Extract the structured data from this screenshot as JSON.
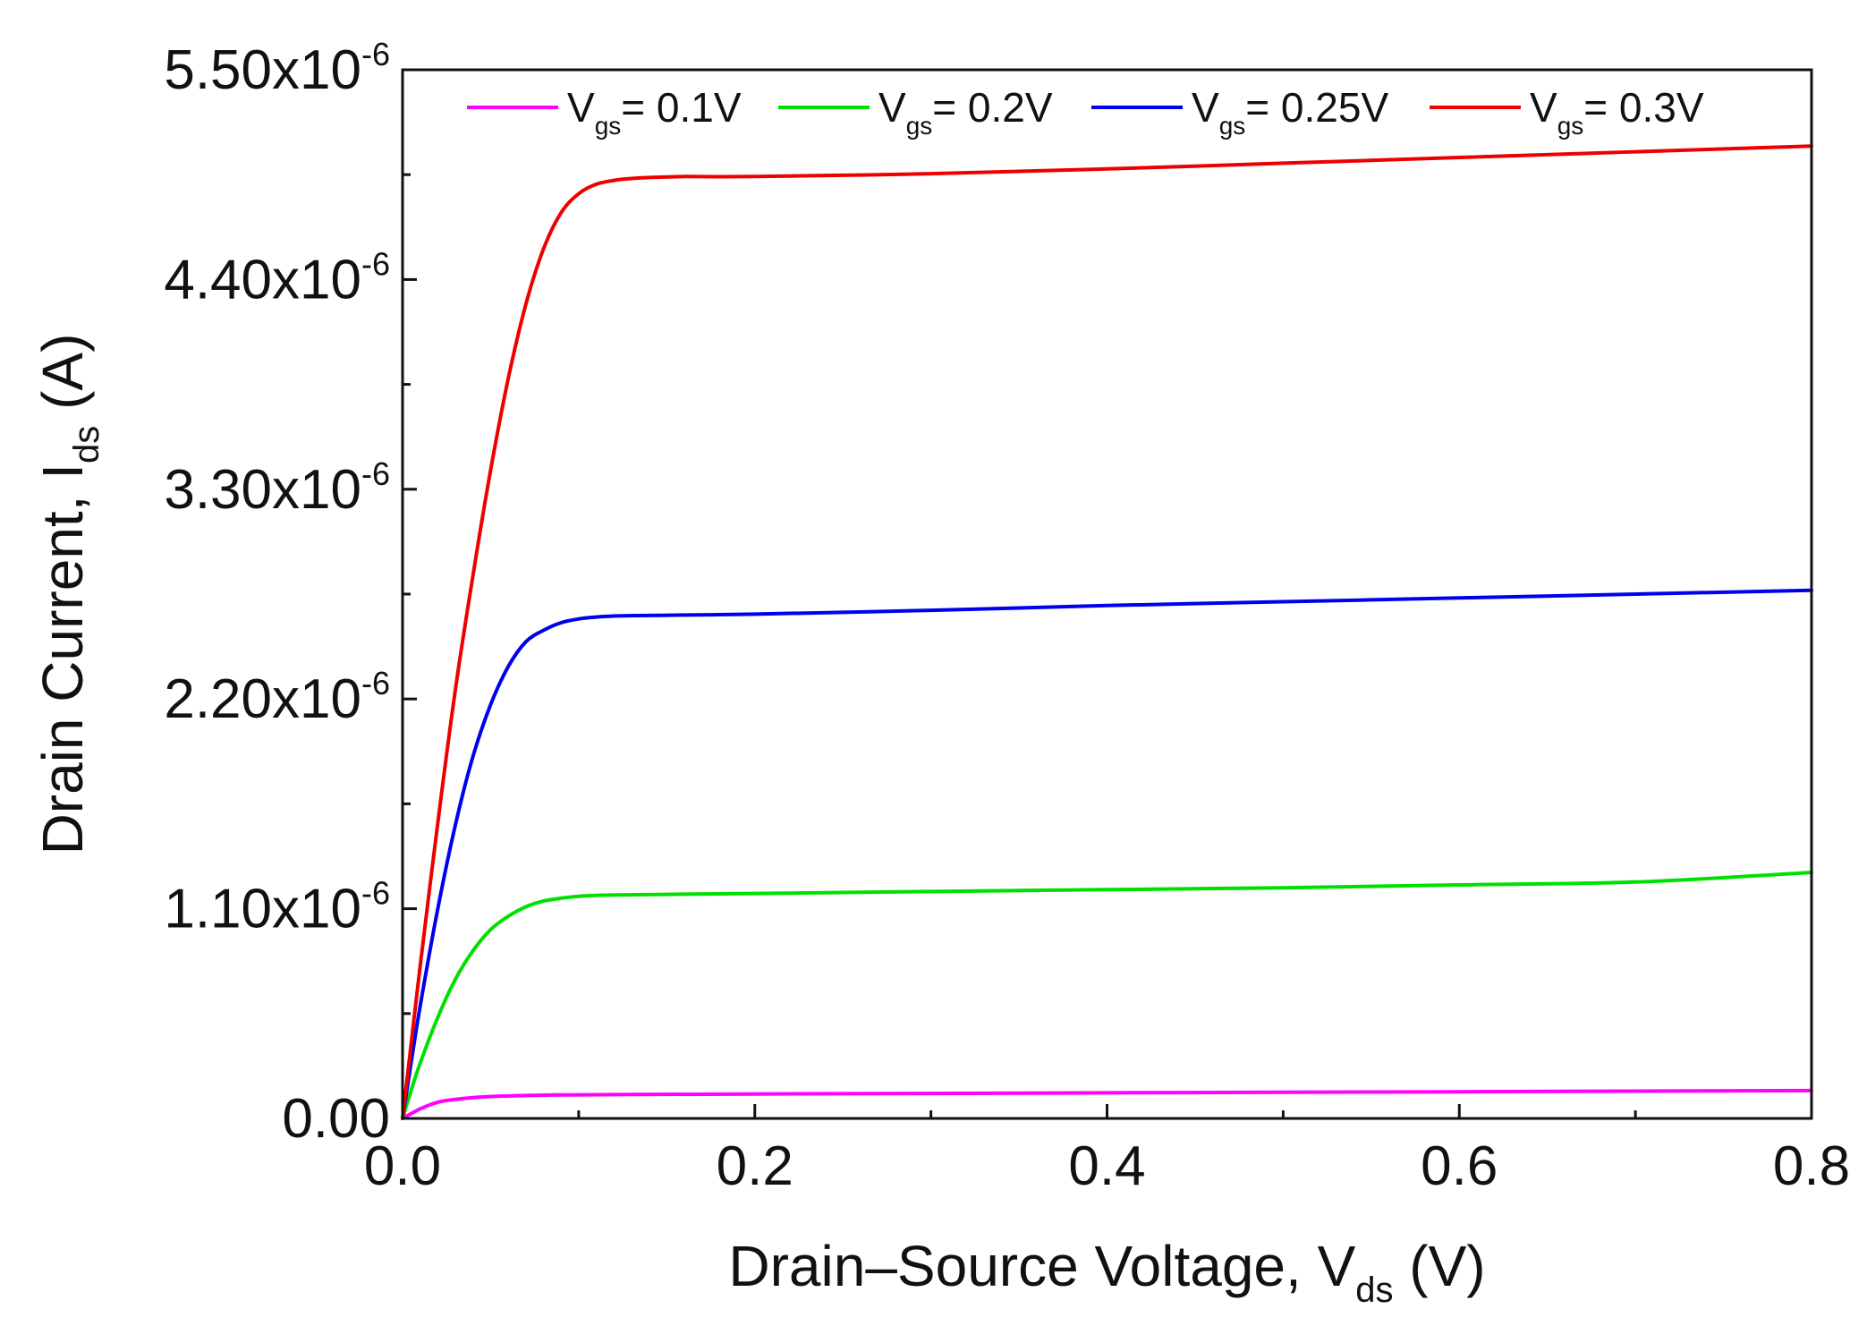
{
  "chart_data": {
    "type": "line",
    "title": "",
    "xlabel": {
      "main": "Drain–Source Voltage, V",
      "sub": "ds",
      "suffix": " (V)"
    },
    "ylabel": {
      "main": "Drain Current, I",
      "sub": "ds",
      "suffix": " (A)"
    },
    "xlim": [
      0,
      0.8
    ],
    "ylim": [
      0,
      5.5e-06
    ],
    "grid": false,
    "legend_position": "top",
    "x_ticks": [
      {
        "value": 0.0,
        "label": "0.0"
      },
      {
        "value": 0.2,
        "label": "0.2"
      },
      {
        "value": 0.4,
        "label": "0.4"
      },
      {
        "value": 0.6,
        "label": "0.6"
      },
      {
        "value": 0.8,
        "label": "0.8"
      }
    ],
    "y_ticks": [
      {
        "value": 0,
        "label": "0.00",
        "exponent": ""
      },
      {
        "value": 1.1e-06,
        "label": "1.10x10",
        "exponent": "-6"
      },
      {
        "value": 2.2e-06,
        "label": "2.20x10",
        "exponent": "-6"
      },
      {
        "value": 3.3e-06,
        "label": "3.30x10",
        "exponent": "-6"
      },
      {
        "value": 4.4e-06,
        "label": "4.40x10",
        "exponent": "-6"
      },
      {
        "value": 5.5e-06,
        "label": "5.50x10",
        "exponent": "-6"
      }
    ],
    "x_minor_ticks": [
      0.1,
      0.3,
      0.5,
      0.7
    ],
    "y_minor_ticks": [
      5.5e-07,
      1.65e-06,
      2.75e-06,
      3.85e-06,
      4.95e-06
    ],
    "series": [
      {
        "name": "Vgs = 0.1V",
        "legend_main": "V",
        "legend_sub": "gs",
        "legend_suffix": "= 0.1V",
        "color": "#ff00ff",
        "x": [
          0,
          0.01,
          0.02,
          0.03,
          0.05,
          0.08,
          0.12,
          0.2,
          0.3,
          0.4,
          0.5,
          0.6,
          0.7,
          0.8
        ],
        "y": [
          0,
          5e-08,
          8.5e-08,
          1e-07,
          1.15e-07,
          1.22e-07,
          1.25e-07,
          1.28e-07,
          1.31e-07,
          1.34e-07,
          1.37e-07,
          1.4e-07,
          1.43e-07,
          1.46e-07
        ]
      },
      {
        "name": "Vgs = 0.2V",
        "legend_main": "V",
        "legend_sub": "gs",
        "legend_suffix": "= 0.2V",
        "color": "#00e000",
        "x": [
          0,
          0.005,
          0.01,
          0.02,
          0.03,
          0.04,
          0.05,
          0.06,
          0.07,
          0.08,
          0.09,
          0.1,
          0.12,
          0.15,
          0.2,
          0.3,
          0.4,
          0.5,
          0.6,
          0.7,
          0.8
        ],
        "y": [
          0,
          1.5e-07,
          2.9e-07,
          5.3e-07,
          7.3e-07,
          8.8e-07,
          9.9e-07,
          1.06e-06,
          1.11e-06,
          1.14e-06,
          1.155e-06,
          1.165e-06,
          1.172e-06,
          1.175e-06,
          1.18e-06,
          1.19e-06,
          1.2e-06,
          1.21e-06,
          1.225e-06,
          1.24e-06,
          1.29e-06
        ]
      },
      {
        "name": "Vgs = 0.25V",
        "legend_main": "V",
        "legend_sub": "gs",
        "legend_suffix": "= 0.25V",
        "color": "#0000ee",
        "x": [
          0,
          0.005,
          0.01,
          0.02,
          0.03,
          0.04,
          0.05,
          0.06,
          0.07,
          0.08,
          0.09,
          0.1,
          0.11,
          0.12,
          0.14,
          0.16,
          0.2,
          0.3,
          0.4,
          0.5,
          0.6,
          0.7,
          0.8
        ],
        "y": [
          0,
          3e-07,
          5.9e-07,
          1.1e-06,
          1.54e-06,
          1.9e-06,
          2.17e-06,
          2.37e-06,
          2.5e-06,
          2.56e-06,
          2.6e-06,
          2.62e-06,
          2.63e-06,
          2.635e-06,
          2.638e-06,
          2.64e-06,
          2.645e-06,
          2.665e-06,
          2.69e-06,
          2.71e-06,
          2.73e-06,
          2.75e-06,
          2.77e-06
        ]
      },
      {
        "name": "Vgs = 0.3V",
        "legend_main": "V",
        "legend_sub": "gs",
        "legend_suffix": "= 0.3V",
        "color": "#ee0000",
        "x": [
          0,
          0.005,
          0.01,
          0.02,
          0.03,
          0.04,
          0.05,
          0.06,
          0.07,
          0.08,
          0.09,
          0.1,
          0.11,
          0.12,
          0.13,
          0.14,
          0.16,
          0.2,
          0.3,
          0.4,
          0.5,
          0.6,
          0.7,
          0.8
        ],
        "y": [
          0,
          4e-07,
          8e-07,
          1.55e-06,
          2.25e-06,
          2.85e-06,
          3.4e-06,
          3.88e-06,
          4.27e-06,
          4.56e-06,
          4.75e-06,
          4.85e-06,
          4.9e-06,
          4.92e-06,
          4.93e-06,
          4.935e-06,
          4.94e-06,
          4.94e-06,
          4.955e-06,
          4.98e-06,
          5.01e-06,
          5.04e-06,
          5.07e-06,
          5.1e-06
        ]
      }
    ]
  }
}
